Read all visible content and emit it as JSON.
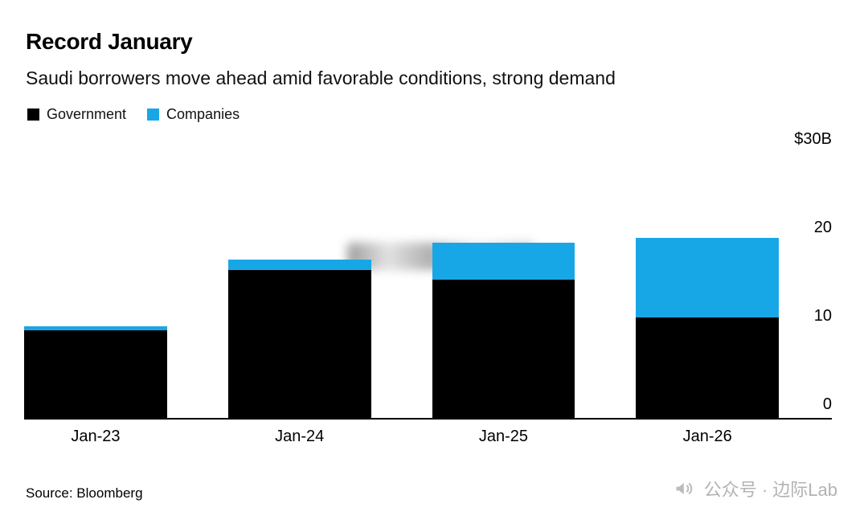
{
  "header": {
    "title": "Record January",
    "subtitle": "Saudi borrowers move ahead amid favorable conditions, strong demand"
  },
  "legend": [
    {
      "label": "Government",
      "color": "#000000"
    },
    {
      "label": "Companies",
      "color": "#18a7e6"
    }
  ],
  "chart_data": {
    "type": "bar",
    "stacked": true,
    "title": "Record January",
    "subtitle": "Saudi borrowers move ahead amid favorable conditions, strong demand",
    "categories": [
      "Jan-23",
      "Jan-24",
      "Jan-25",
      "Jan-26"
    ],
    "series": [
      {
        "name": "Government",
        "color": "#000000",
        "values": [
          9.9,
          16.7,
          15.6,
          11.4
        ]
      },
      {
        "name": "Companies",
        "color": "#18a7e6",
        "values": [
          0.5,
          1.2,
          4.2,
          9.0
        ]
      }
    ],
    "xlabel": "",
    "ylabel": "",
    "ylim": [
      0,
      30
    ],
    "yticks": [
      {
        "value": 30,
        "label": "$30B"
      },
      {
        "value": 20,
        "label": "20"
      },
      {
        "value": 10,
        "label": "10"
      },
      {
        "value": 0,
        "label": "0"
      }
    ],
    "grid": false,
    "legend_position": "top-left",
    "y_axis_side": "right"
  },
  "footer": {
    "source": "Source: Bloomberg",
    "watermark": "公众号 · 边际Lab"
  }
}
